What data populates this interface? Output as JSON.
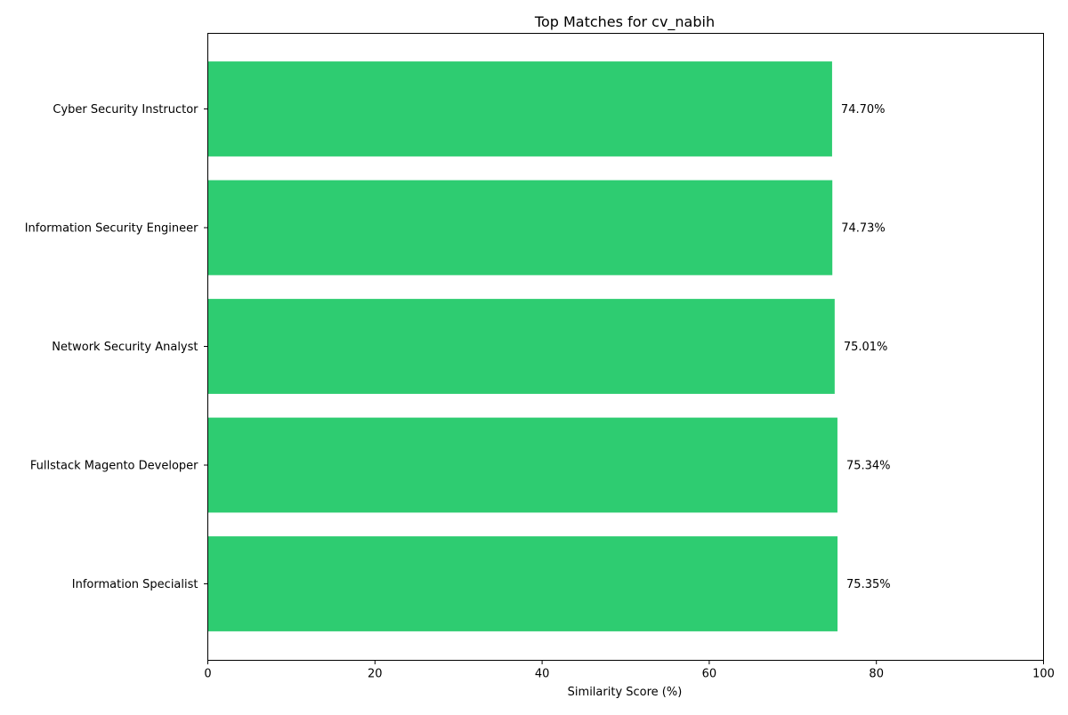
{
  "chart_data": {
    "type": "bar",
    "orientation": "horizontal",
    "title": "Top Matches for cv_nabih",
    "xlabel": "Similarity Score (%)",
    "ylabel": "",
    "xlim": [
      0,
      100
    ],
    "xticks": [
      "0",
      "20",
      "40",
      "60",
      "80",
      "100"
    ],
    "categories": [
      "Cyber Security Instructor",
      "Information Security Engineer",
      "Network Security Analyst",
      "Fullstack Magento Developer",
      "Information Specialist"
    ],
    "values": [
      74.7,
      74.73,
      75.01,
      75.34,
      75.35
    ],
    "value_labels": [
      "74.70%",
      "74.73%",
      "75.01%",
      "75.34%",
      "75.35%"
    ],
    "bar_color": "#2ecc71",
    "grid": false,
    "legend": "none"
  }
}
